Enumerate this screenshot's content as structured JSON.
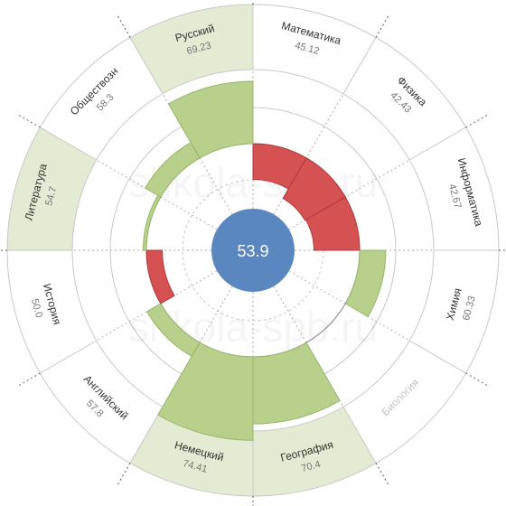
{
  "watermark": "shkola-spb.ru",
  "chart_data": {
    "type": "radial-bar",
    "center_value": "53.9",
    "baseline": 53.9,
    "subjects": [
      {
        "name": "Математика",
        "value": 45.12,
        "label": "45.12",
        "highlight": false,
        "muted": false
      },
      {
        "name": "Физика",
        "value": 42.43,
        "label": "42.43",
        "highlight": false,
        "muted": false
      },
      {
        "name": "Информатика",
        "value": 42.67,
        "label": "42.67",
        "highlight": false,
        "muted": false
      },
      {
        "name": "Химия",
        "value": 60.33,
        "label": "60.33",
        "highlight": false,
        "muted": false
      },
      {
        "name": "Биология",
        "value": null,
        "label": "",
        "highlight": false,
        "muted": true
      },
      {
        "name": "География",
        "value": 70.4,
        "label": "70.4",
        "highlight": true,
        "muted": false
      },
      {
        "name": "Немецкий",
        "value": 74.41,
        "label": "74.41",
        "highlight": true,
        "muted": false
      },
      {
        "name": "Английский",
        "value": 57.8,
        "label": "57.8",
        "highlight": false,
        "muted": false
      },
      {
        "name": "История",
        "value": 50.0,
        "label": "50.0",
        "highlight": false,
        "muted": false
      },
      {
        "name": "Литература",
        "value": 54.7,
        "label": "54.7",
        "highlight": true,
        "muted": false
      },
      {
        "name": "Обществозн",
        "value": 58.3,
        "label": "58.3",
        "highlight": false,
        "muted": false
      },
      {
        "name": "Русский",
        "value": 69.23,
        "label": "69.23",
        "highlight": true,
        "muted": false
      }
    ],
    "colors": {
      "center": "#5a87c0",
      "above": "#b8d08c",
      "below": "#d55152",
      "highlight_fill": "#e3ebd2",
      "ring_line": "#c8c8c8",
      "label_text": "#333333",
      "value_text": "#777777",
      "muted_text": "#c4c4c4"
    }
  }
}
